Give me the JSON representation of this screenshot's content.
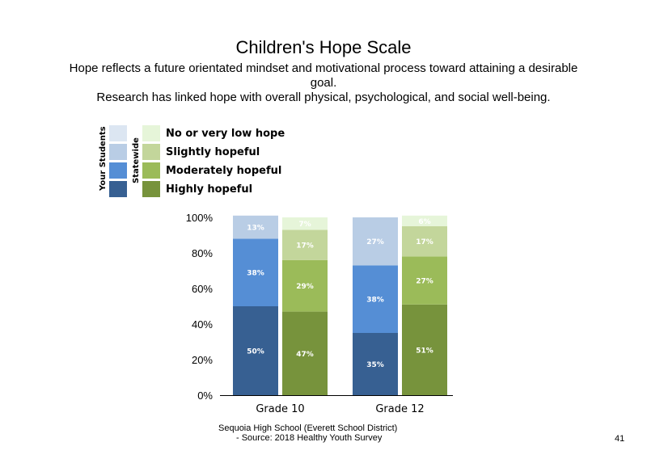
{
  "slide": {
    "title": "Children's Hope Scale",
    "subtitle_line1": "Hope reflects a future orientated mindset and motivational process toward attaining a desirable",
    "subtitle_line2": "goal.",
    "subtitle_line3": "Research has linked hope with overall physical, psychological, and social well-being.",
    "footer_line1": "Sequoia High School (Everett School District)",
    "footer_line2": "- Source: 2018 Healthy Youth Survey",
    "page_number": "41"
  },
  "legend": {
    "group_your_students": "Your Students",
    "group_statewide": "Statewide",
    "items": [
      {
        "label": "No or very low hope",
        "your_color": "#dce6f2",
        "state_color": "#e6f5d9"
      },
      {
        "label": "Slightly hopeful",
        "your_color": "#b9cde5",
        "state_color": "#c3d69b"
      },
      {
        "label": "Moderately hopeful",
        "your_color": "#558ed5",
        "state_color": "#9bbb59"
      },
      {
        "label": "Highly hopeful",
        "your_color": "#376092",
        "state_color": "#77933c"
      }
    ]
  },
  "chart_data": {
    "type": "bar",
    "stacked": true,
    "categories": [
      "Grade 10",
      "Grade 12"
    ],
    "ylim": [
      0,
      100
    ],
    "yticks": [
      "0%",
      "20%",
      "40%",
      "60%",
      "80%",
      "100%"
    ],
    "series_order": [
      "Highly hopeful",
      "Moderately hopeful",
      "Slightly hopeful",
      "No or very low hope"
    ],
    "groups": [
      {
        "category": "Grade 10",
        "bars": [
          {
            "group": "Your Students",
            "values": [
              50,
              38,
              13,
              0
            ],
            "labels": [
              "50%",
              "38%",
              "13%",
              ""
            ],
            "colors": [
              "#376092",
              "#558ed5",
              "#b9cde5",
              "#dce6f2"
            ]
          },
          {
            "group": "Statewide",
            "values": [
              47,
              29,
              17,
              7
            ],
            "labels": [
              "47%",
              "29%",
              "17%",
              "7%"
            ],
            "colors": [
              "#77933c",
              "#9bbb59",
              "#c3d69b",
              "#e6f5d9"
            ]
          }
        ]
      },
      {
        "category": "Grade 12",
        "bars": [
          {
            "group": "Your Students",
            "values": [
              35,
              38,
              27,
              0
            ],
            "labels": [
              "35%",
              "38%",
              "27%",
              ""
            ],
            "colors": [
              "#376092",
              "#558ed5",
              "#b9cde5",
              "#dce6f2"
            ]
          },
          {
            "group": "Statewide",
            "values": [
              51,
              27,
              17,
              6
            ],
            "labels": [
              "51%",
              "27%",
              "17%",
              "6%"
            ],
            "colors": [
              "#77933c",
              "#9bbb59",
              "#c3d69b",
              "#e6f5d9"
            ]
          }
        ]
      }
    ]
  }
}
